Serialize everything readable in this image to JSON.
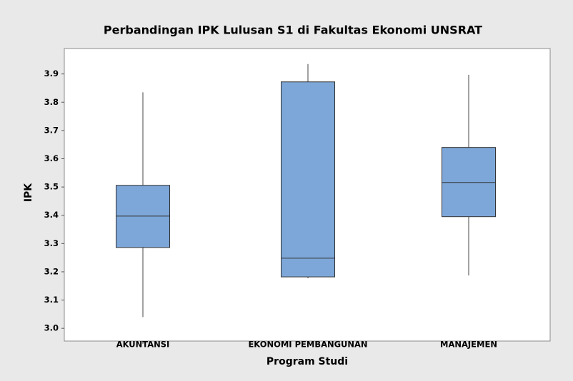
{
  "chart_data": {
    "type": "box",
    "title": "Perbandingan IPK Lulusan S1 di Fakultas Ekonomi UNSRAT",
    "x_label": "Program Studi",
    "y_label": "IPK",
    "categories": [
      "AKUNTANSI",
      "EKONOMI PEMBANGUNAN",
      "MANAJEMEN"
    ],
    "boxes": [
      {
        "min": 3.04,
        "q1": 3.286,
        "median": 3.397,
        "q3": 3.506,
        "max": 3.835
      },
      {
        "min": 3.177,
        "q1": 3.182,
        "median": 3.248,
        "q3": 3.872,
        "max": 3.935
      },
      {
        "min": 3.187,
        "q1": 3.395,
        "median": 3.516,
        "q3": 3.64,
        "max": 3.897
      }
    ],
    "color": "#7da7d9",
    "ylim": [
      2.955,
      3.99
    ],
    "yticks": [
      {
        "value": 3,
        "label": "3.0"
      },
      3.1,
      3.2,
      3.3,
      3.4,
      3.5,
      3.6,
      3.7,
      3.8,
      3.9
    ],
    "grid": false
  }
}
